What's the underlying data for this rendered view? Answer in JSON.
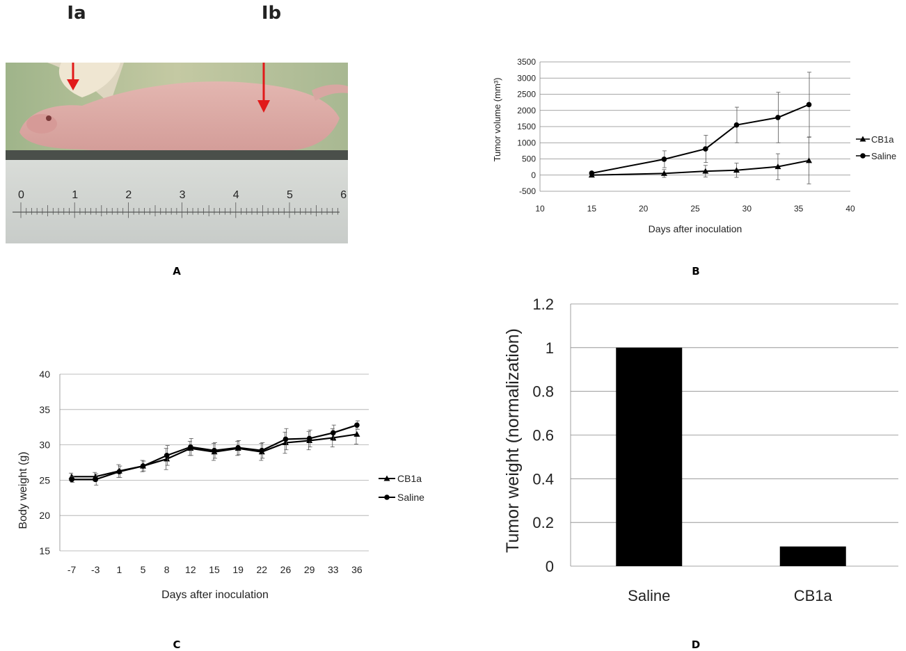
{
  "panel_labels": {
    "a": "A",
    "b": "B",
    "c": "C",
    "d": "D"
  },
  "photo": {
    "marker_left": "Ia",
    "marker_right": "Ib",
    "ruler_numbers": [
      "0",
      "1",
      "2",
      "3",
      "4",
      "5",
      "6"
    ]
  },
  "chart_data": [
    {
      "id": "B",
      "type": "line",
      "xlabel": "Days after inoculation",
      "ylabel": "Tumor volume (mm³)",
      "xlim": [
        10,
        40
      ],
      "ylim": [
        -500,
        3500
      ],
      "x_ticks": [
        10,
        15,
        20,
        25,
        30,
        35,
        40
      ],
      "y_ticks": [
        -500,
        0,
        500,
        1000,
        1500,
        2000,
        2500,
        3000,
        3500
      ],
      "grid": "horizontal",
      "legend": "right",
      "series": [
        {
          "name": "CB1a",
          "marker": "triangle",
          "x": [
            15,
            22,
            26,
            29,
            33,
            36
          ],
          "y": [
            0,
            50,
            120,
            150,
            260,
            450
          ],
          "err": [
            0,
            120,
            180,
            220,
            400,
            720
          ]
        },
        {
          "name": "Saline",
          "marker": "circle",
          "x": [
            15,
            22,
            26,
            29,
            33,
            36
          ],
          "y": [
            60,
            490,
            810,
            1550,
            1780,
            2180
          ],
          "err": [
            0,
            260,
            420,
            550,
            780,
            1000
          ]
        }
      ]
    },
    {
      "id": "C",
      "type": "line",
      "xlabel": "Days after inoculation",
      "ylabel": "Body weight (g)",
      "categories": [
        "-7",
        "-3",
        "1",
        "5",
        "8",
        "12",
        "15",
        "19",
        "22",
        "26",
        "29",
        "33",
        "36"
      ],
      "ylim": [
        15,
        40
      ],
      "y_ticks": [
        15,
        20,
        25,
        30,
        35,
        40
      ],
      "grid": "horizontal",
      "legend": "right",
      "series": [
        {
          "name": "CB1a",
          "marker": "triangle",
          "values": [
            25.5,
            25.5,
            26.3,
            27.0,
            28.0,
            29.5,
            29.0,
            29.5,
            29.0,
            30.3,
            30.6,
            31.0,
            31.5
          ],
          "err": [
            0.5,
            0.6,
            0.9,
            0.8,
            1.5,
            1.0,
            1.2,
            1.0,
            1.2,
            1.5,
            1.3,
            1.3,
            1.4
          ]
        },
        {
          "name": "Saline",
          "marker": "circle",
          "values": [
            25.1,
            25.1,
            26.2,
            27.0,
            28.5,
            29.7,
            29.2,
            29.6,
            29.2,
            30.8,
            30.9,
            31.7,
            32.8
          ],
          "err": [
            0.4,
            0.8,
            0.8,
            0.7,
            1.4,
            1.2,
            1.1,
            1.0,
            1.1,
            1.5,
            1.2,
            1.1,
            0.6
          ]
        }
      ]
    },
    {
      "id": "D",
      "type": "bar",
      "ylabel": "Tumor weight  (normalization)",
      "categories": [
        "Saline",
        "CB1a"
      ],
      "values": [
        1.0,
        0.09
      ],
      "ylim": [
        0,
        1.2
      ],
      "y_ticks": [
        "0",
        "0.2",
        "0.4",
        "0.6",
        "0.8",
        "1",
        "1.2"
      ],
      "grid": "horizontal",
      "bar_color": "#000000"
    }
  ]
}
